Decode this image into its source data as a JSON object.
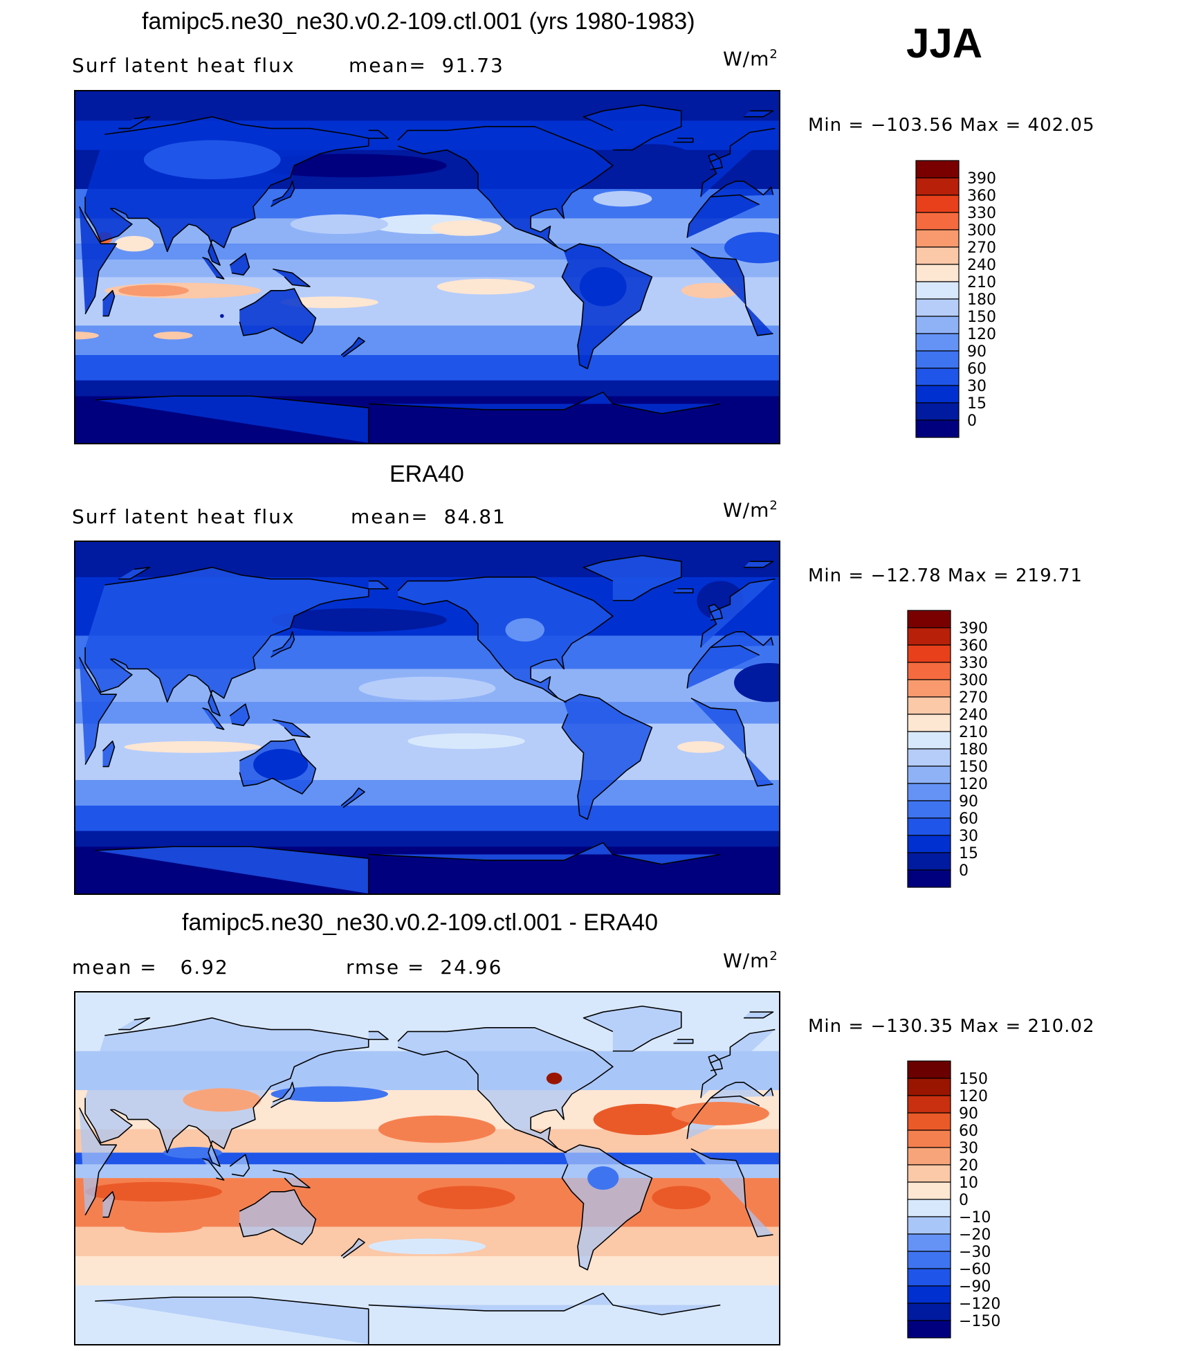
{
  "season": "JJA",
  "panels": [
    {
      "title": "famipc5.ne30_ne30.v0.2-109.ctl.001 (yrs 1980-1983)",
      "left_text": "Surf latent heat flux",
      "stat_text": "mean=  91.73",
      "units": "W/m",
      "units_sup": "2",
      "minmax": "Min = −103.56 Max = 402.05"
    },
    {
      "title": "ERA40",
      "left_text": "Surf latent heat flux",
      "stat_text": "mean=  84.81",
      "units": "W/m",
      "units_sup": "2",
      "minmax": "Min = −12.78 Max = 219.71"
    },
    {
      "title": "famipc5.ne30_ne30.v0.2-109.ctl.001 - ERA40",
      "left_text": "mean =   6.92",
      "stat_text": "rmse =  24.96",
      "units": "W/m",
      "units_sup": "2",
      "minmax": "Min = −130.35 Max = 210.02"
    }
  ],
  "chart_data": [
    {
      "type": "heatmap",
      "title": "famipc5.ne30_ne30.v0.2-109.ctl.001 (yrs 1980-1983)",
      "variable": "Surf latent heat flux",
      "units": "W/m2",
      "mean": 91.73,
      "min": -103.56,
      "max": 402.05,
      "colorbar_levels": [
        0,
        15,
        30,
        60,
        90,
        120,
        150,
        180,
        210,
        240,
        270,
        300,
        330,
        360,
        390
      ],
      "colorbar_labels": [
        "390",
        "360",
        "330",
        "300",
        "270",
        "240",
        "210",
        "180",
        "150",
        "120",
        "90",
        "60",
        "30",
        "15",
        "0"
      ],
      "colors": [
        "#00007f",
        "#001aa0",
        "#0030d0",
        "#1f55e8",
        "#3f74f0",
        "#6493f5",
        "#8fb2f7",
        "#b6cdfa",
        "#d8e8fc",
        "#fde6d2",
        "#fbc8a8",
        "#f89a6e",
        "#f56b3f",
        "#e8401b",
        "#b8200a",
        "#7a0000"
      ]
    },
    {
      "type": "heatmap",
      "title": "ERA40",
      "variable": "Surf latent heat flux",
      "units": "W/m2",
      "mean": 84.81,
      "min": -12.78,
      "max": 219.71,
      "colorbar_levels": [
        0,
        15,
        30,
        60,
        90,
        120,
        150,
        180,
        210,
        240,
        270,
        300,
        330,
        360,
        390
      ],
      "colorbar_labels": [
        "390",
        "360",
        "330",
        "300",
        "270",
        "240",
        "210",
        "180",
        "150",
        "120",
        "90",
        "60",
        "30",
        "15",
        "0"
      ],
      "colors": [
        "#00007f",
        "#001aa0",
        "#0030d0",
        "#1f55e8",
        "#3f74f0",
        "#6493f5",
        "#8fb2f7",
        "#b6cdfa",
        "#d8e8fc",
        "#fde6d2",
        "#fbc8a8",
        "#f89a6e",
        "#f56b3f",
        "#e8401b",
        "#b8200a",
        "#7a0000"
      ]
    },
    {
      "type": "heatmap",
      "title": "famipc5.ne30_ne30.v0.2-109.ctl.001 - ERA40",
      "units": "W/m2",
      "mean": 6.92,
      "rmse": 24.96,
      "min": -130.35,
      "max": 210.02,
      "colorbar_levels": [
        -150,
        -120,
        -90,
        -60,
        -30,
        -20,
        -10,
        0,
        10,
        20,
        30,
        60,
        90,
        120,
        150
      ],
      "colorbar_labels": [
        "150",
        "120",
        "90",
        "60",
        "30",
        "20",
        "10",
        "0",
        "−10",
        "−20",
        "−30",
        "−60",
        "−90",
        "−120",
        "−150"
      ],
      "colors": [
        "#00007f",
        "#001aa0",
        "#0030d0",
        "#1f55e8",
        "#3f74f0",
        "#6493f5",
        "#a9c6f8",
        "#d8e8fc",
        "#fde6d2",
        "#fbc8a8",
        "#f8a47a",
        "#f5804f",
        "#ea5a28",
        "#c8300f",
        "#9a1500",
        "#6a0000"
      ]
    }
  ]
}
